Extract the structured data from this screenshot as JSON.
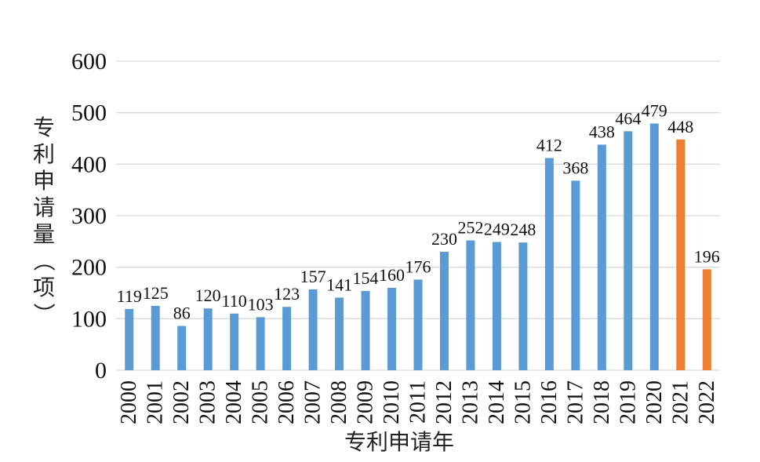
{
  "chart_data": {
    "type": "bar",
    "title": "",
    "xlabel": "专利申请年",
    "ylabel": "专利申请量（项）",
    "ylim": [
      0,
      600
    ],
    "yticks": [
      0,
      100,
      200,
      300,
      400,
      500,
      600
    ],
    "grid": true,
    "legend": "none",
    "categories": [
      "2000",
      "2001",
      "2002",
      "2003",
      "2004",
      "2005",
      "2006",
      "2007",
      "2008",
      "2009",
      "2010",
      "2011",
      "2012",
      "2013",
      "2014",
      "2015",
      "2016",
      "2017",
      "2018",
      "2019",
      "2020",
      "2021",
      "2022"
    ],
    "values": [
      119,
      125,
      86,
      120,
      110,
      103,
      123,
      157,
      141,
      154,
      160,
      176,
      230,
      252,
      249,
      248,
      412,
      368,
      438,
      464,
      479,
      448,
      196
    ],
    "colors": {
      "default": "#5b9bd5",
      "highlight": "#ed7d31",
      "highlight_categories": [
        "2021",
        "2022"
      ]
    }
  }
}
